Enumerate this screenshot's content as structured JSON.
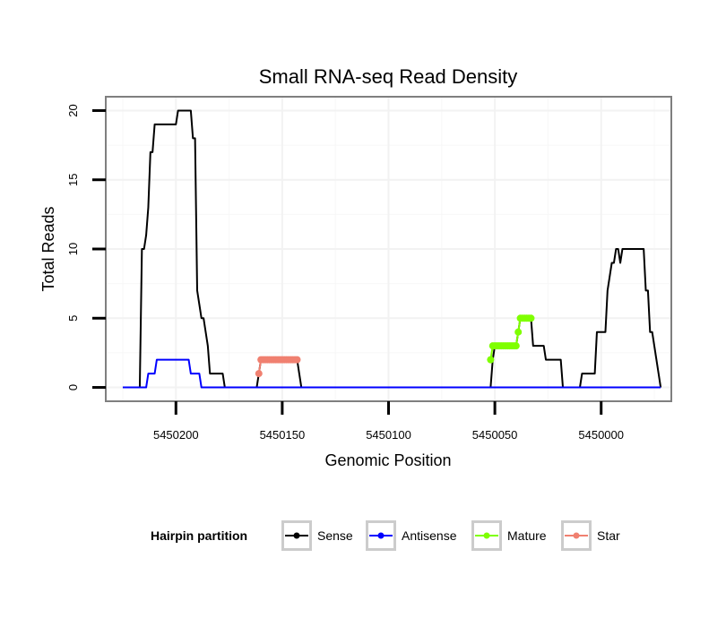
{
  "chart_data": {
    "type": "line",
    "title": "Small RNA-seq Read Density",
    "xlabel": "Genomic Position",
    "ylabel": "Total Reads",
    "xlim": [
      5450233,
      5449967
    ],
    "ylim": [
      -1,
      21
    ],
    "x_ticks": [
      5450200,
      5450150,
      5450100,
      5450050,
      5450000
    ],
    "y_ticks": [
      0,
      5,
      10,
      15,
      20
    ],
    "grid": true,
    "legend": {
      "title": "Hairpin partition",
      "position": "bottom",
      "entries": [
        "Sense",
        "Antisense",
        "Mature",
        "Star"
      ]
    },
    "series": [
      {
        "name": "Sense",
        "color": "#000000",
        "style": "line",
        "points": [
          [
            5450225,
            0
          ],
          [
            5450217,
            0
          ],
          [
            5450216,
            10
          ],
          [
            5450215,
            10
          ],
          [
            5450214,
            11
          ],
          [
            5450213,
            13
          ],
          [
            5450212,
            17
          ],
          [
            5450211,
            17
          ],
          [
            5450210,
            19
          ],
          [
            5450200,
            19
          ],
          [
            5450199,
            20
          ],
          [
            5450193,
            20
          ],
          [
            5450192,
            18
          ],
          [
            5450191,
            18
          ],
          [
            5450190,
            7
          ],
          [
            5450189,
            6
          ],
          [
            5450188,
            5
          ],
          [
            5450187,
            5
          ],
          [
            5450186,
            4
          ],
          [
            5450185,
            3
          ],
          [
            5450184,
            1
          ],
          [
            5450178,
            1
          ],
          [
            5450177,
            0
          ],
          [
            5450162,
            0
          ],
          [
            5450161,
            1
          ],
          [
            5450160,
            2
          ],
          [
            5450143,
            2
          ],
          [
            5450142,
            1
          ],
          [
            5450141,
            0
          ],
          [
            5450052,
            0
          ],
          [
            5450051,
            2
          ],
          [
            5450050,
            3
          ],
          [
            5450040,
            3
          ],
          [
            5450039,
            4
          ],
          [
            5450038,
            5
          ],
          [
            5450033,
            5
          ],
          [
            5450032,
            3
          ],
          [
            5450027,
            3
          ],
          [
            5450026,
            2
          ],
          [
            5450019,
            2
          ],
          [
            5450018,
            0
          ],
          [
            5450010,
            0
          ],
          [
            5450009,
            1
          ],
          [
            5450003,
            1
          ],
          [
            5450002,
            4
          ],
          [
            5449998,
            4
          ],
          [
            5449997,
            7
          ],
          [
            5449996,
            8
          ],
          [
            5449995,
            9
          ],
          [
            5449994,
            9
          ],
          [
            5449993,
            10
          ],
          [
            5449992,
            10
          ],
          [
            5449991,
            9
          ],
          [
            5449990,
            10
          ],
          [
            5449980,
            10
          ],
          [
            5449979,
            7
          ],
          [
            5449978,
            7
          ],
          [
            5449977,
            4
          ],
          [
            5449976,
            4
          ],
          [
            5449975,
            3
          ],
          [
            5449973,
            1
          ],
          [
            5449972,
            0
          ]
        ]
      },
      {
        "name": "Antisense",
        "color": "#0000ff",
        "style": "line",
        "points": [
          [
            5450225,
            0
          ],
          [
            5450214,
            0
          ],
          [
            5450213,
            1
          ],
          [
            5450210,
            1
          ],
          [
            5450209,
            2
          ],
          [
            5450194,
            2
          ],
          [
            5450193,
            1
          ],
          [
            5450189,
            1
          ],
          [
            5450188,
            0
          ],
          [
            5449972,
            0
          ]
        ]
      },
      {
        "name": "Mature",
        "color": "#7fff00",
        "style": "dots",
        "points": [
          [
            5450052,
            2
          ],
          [
            5450051,
            3
          ],
          [
            5450050,
            3
          ],
          [
            5450049,
            3
          ],
          [
            5450048,
            3
          ],
          [
            5450047,
            3
          ],
          [
            5450046,
            3
          ],
          [
            5450045,
            3
          ],
          [
            5450044,
            3
          ],
          [
            5450043,
            3
          ],
          [
            5450042,
            3
          ],
          [
            5450041,
            3
          ],
          [
            5450040,
            3
          ],
          [
            5450039,
            4
          ],
          [
            5450038,
            5
          ],
          [
            5450037,
            5
          ],
          [
            5450036,
            5
          ],
          [
            5450035,
            5
          ],
          [
            5450034,
            5
          ],
          [
            5450033,
            5
          ]
        ]
      },
      {
        "name": "Star",
        "color": "#f08070",
        "style": "dots",
        "points": [
          [
            5450161,
            1
          ],
          [
            5450160,
            2
          ],
          [
            5450159,
            2
          ],
          [
            5450158,
            2
          ],
          [
            5450157,
            2
          ],
          [
            5450156,
            2
          ],
          [
            5450155,
            2
          ],
          [
            5450154,
            2
          ],
          [
            5450153,
            2
          ],
          [
            5450152,
            2
          ],
          [
            5450151,
            2
          ],
          [
            5450150,
            2
          ],
          [
            5450149,
            2
          ],
          [
            5450148,
            2
          ],
          [
            5450147,
            2
          ],
          [
            5450146,
            2
          ],
          [
            5450145,
            2
          ],
          [
            5450144,
            2
          ],
          [
            5450143,
            2
          ]
        ]
      }
    ]
  }
}
